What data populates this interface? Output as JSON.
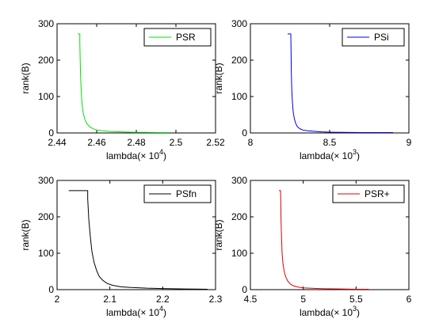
{
  "chart_data": [
    {
      "type": "line",
      "series": [
        {
          "name": "PSR",
          "color": "#00e000",
          "x": [
            2.4505,
            2.4515,
            2.4515,
            2.4518,
            2.4522,
            2.4526,
            2.4532,
            2.454,
            2.455,
            2.4565,
            2.458,
            2.46,
            2.463,
            2.467,
            2.472,
            2.478,
            2.485,
            2.492,
            2.497
          ],
          "y": [
            272,
            272,
            245,
            170,
            115,
            80,
            55,
            38,
            26,
            17,
            12,
            8,
            6,
            4,
            3,
            2,
            1.5,
            1,
            1
          ]
        }
      ],
      "xlim": [
        2.44,
        2.52
      ],
      "ylim": [
        0,
        300
      ],
      "xticks": [
        2.44,
        2.46,
        2.48,
        2.5,
        2.52
      ],
      "xtick_labels": [
        "2.44",
        "2.46",
        "2.48",
        "2.5",
        "2.52"
      ],
      "yticks": [
        0,
        100,
        200,
        300
      ],
      "ytick_labels": [
        "0",
        "100",
        "200",
        "300"
      ],
      "xlabel": "lambda(× 10",
      "xlabel_exp": "4",
      "xlabel_tail": ")",
      "ylabel": "rank(B)",
      "legend": "top-right"
    },
    {
      "type": "line",
      "series": [
        {
          "name": "PSi",
          "color": "#0000e0",
          "x": [
            8.235,
            8.255,
            8.256,
            8.258,
            8.261,
            8.265,
            8.27,
            8.277,
            8.285,
            8.295,
            8.31,
            8.33,
            8.36,
            8.4,
            8.45,
            8.52,
            8.6,
            8.7,
            8.8,
            8.9
          ],
          "y": [
            272,
            272,
            240,
            170,
            120,
            85,
            58,
            40,
            27,
            18,
            12,
            8,
            6,
            4.5,
            3,
            2,
            1.5,
            1,
            1,
            1
          ]
        }
      ],
      "xlim": [
        8,
        9
      ],
      "ylim": [
        0,
        300
      ],
      "xticks": [
        8,
        8.5,
        9
      ],
      "xtick_labels": [
        "8",
        "8.5",
        "9"
      ],
      "yticks": [
        0,
        100,
        200,
        300
      ],
      "ytick_labels": [
        "0",
        "100",
        "200",
        "300"
      ],
      "xlabel": "lambda(× 10",
      "xlabel_exp": "3",
      "xlabel_tail": ")",
      "ylabel": "rank(B)",
      "legend": "top-right"
    },
    {
      "type": "line",
      "series": [
        {
          "name": "PSfn",
          "color": "#000000",
          "x": [
            2.022,
            2.058,
            2.058,
            2.06,
            2.063,
            2.066,
            2.07,
            2.075,
            2.08,
            2.087,
            2.095,
            2.105,
            2.12,
            2.14,
            2.17,
            2.2,
            2.24,
            2.285
          ],
          "y": [
            272,
            272,
            250,
            195,
            145,
            105,
            75,
            52,
            36,
            25,
            17,
            12,
            8,
            6,
            4,
            3,
            2,
            1
          ]
        }
      ],
      "xlim": [
        2,
        2.3
      ],
      "ylim": [
        0,
        300
      ],
      "xticks": [
        2,
        2.1,
        2.2,
        2.3
      ],
      "xtick_labels": [
        "2",
        "2.1",
        "2.2",
        "2.3"
      ],
      "yticks": [
        0,
        100,
        200,
        300
      ],
      "ytick_labels": [
        "0",
        "100",
        "200",
        "300"
      ],
      "xlabel": "lambda(× 10",
      "xlabel_exp": "4",
      "xlabel_tail": ")",
      "ylabel": "rank(B)",
      "legend": "top-right"
    },
    {
      "type": "line",
      "series": [
        {
          "name": "PSR+",
          "color": "#e00000",
          "x": [
            4.77,
            4.785,
            4.787,
            4.79,
            4.795,
            4.8,
            4.808,
            4.82,
            4.835,
            4.855,
            4.88,
            4.91,
            4.95,
            5.0,
            5.1,
            5.2,
            5.35,
            5.5,
            5.62
          ],
          "y": [
            272,
            272,
            250,
            190,
            140,
            100,
            72,
            50,
            34,
            23,
            15,
            10,
            7,
            5,
            3.5,
            2.5,
            1.8,
            1.2,
            1
          ]
        }
      ],
      "xlim": [
        4.5,
        6
      ],
      "ylim": [
        0,
        300
      ],
      "xticks": [
        4.5,
        5,
        5.5,
        6
      ],
      "xtick_labels": [
        "4.5",
        "5",
        "5.5",
        "6"
      ],
      "yticks": [
        0,
        100,
        200,
        300
      ],
      "ytick_labels": [
        "0",
        "100",
        "200",
        "300"
      ],
      "xlabel": "lambda(× 10",
      "xlabel_exp": "3",
      "xlabel_tail": ")",
      "ylabel": "rank(B)",
      "legend": "top-right"
    }
  ]
}
